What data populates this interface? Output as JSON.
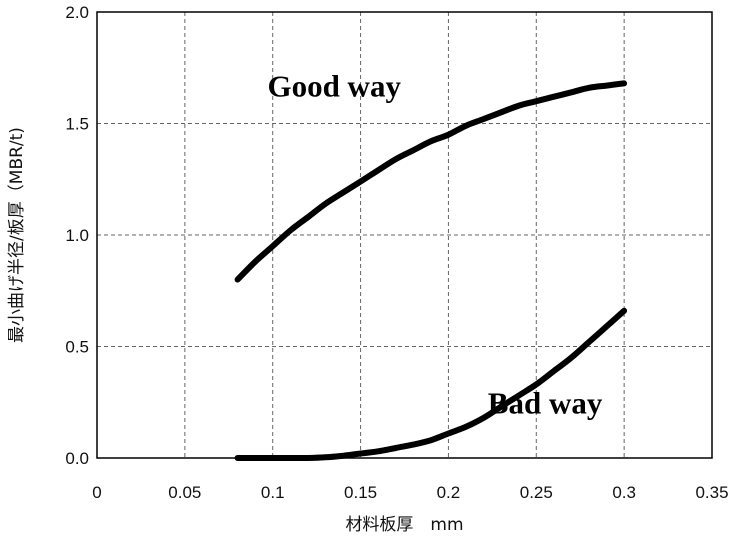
{
  "chart_data": {
    "type": "line",
    "title": "",
    "xlabel": "材料板厚　mm",
    "ylabel": "最小曲げ半径/板厚（MBR/t)",
    "xlim": [
      0,
      0.35
    ],
    "ylim": [
      0,
      2.0
    ],
    "x_ticks": [
      "0",
      "0.05",
      "0.1",
      "0.15",
      "0.2",
      "0.25",
      "0.3",
      "0.35"
    ],
    "y_ticks": [
      "0.0",
      "0.5",
      "1.0",
      "1.5",
      "2.0"
    ],
    "grid": "dashed",
    "legend": "none",
    "series": [
      {
        "name": "Good way",
        "x": [
          0.08,
          0.09,
          0.1,
          0.11,
          0.12,
          0.13,
          0.14,
          0.15,
          0.16,
          0.17,
          0.18,
          0.19,
          0.2,
          0.21,
          0.22,
          0.23,
          0.24,
          0.25,
          0.26,
          0.27,
          0.28,
          0.29,
          0.3
        ],
        "values": [
          0.8,
          0.88,
          0.95,
          1.02,
          1.08,
          1.14,
          1.19,
          1.24,
          1.29,
          1.34,
          1.38,
          1.42,
          1.45,
          1.49,
          1.52,
          1.55,
          1.58,
          1.6,
          1.62,
          1.64,
          1.66,
          1.67,
          1.68
        ]
      },
      {
        "name": "Bad way",
        "x": [
          0.08,
          0.09,
          0.1,
          0.11,
          0.12,
          0.13,
          0.14,
          0.15,
          0.16,
          0.17,
          0.18,
          0.19,
          0.2,
          0.21,
          0.22,
          0.23,
          0.24,
          0.25,
          0.26,
          0.27,
          0.28,
          0.29,
          0.3
        ],
        "values": [
          0.0,
          0.0,
          0.0,
          0.0,
          0.0,
          0.003,
          0.01,
          0.02,
          0.03,
          0.045,
          0.06,
          0.08,
          0.11,
          0.14,
          0.18,
          0.23,
          0.28,
          0.33,
          0.39,
          0.45,
          0.52,
          0.59,
          0.66
        ]
      }
    ],
    "annotations": [
      {
        "text": "Good way",
        "x": 0.135,
        "y": 1.62
      },
      {
        "text": "Bad way",
        "x": 0.255,
        "y": 0.2
      }
    ],
    "line_color": "#000000",
    "grid_color": "#666666"
  }
}
